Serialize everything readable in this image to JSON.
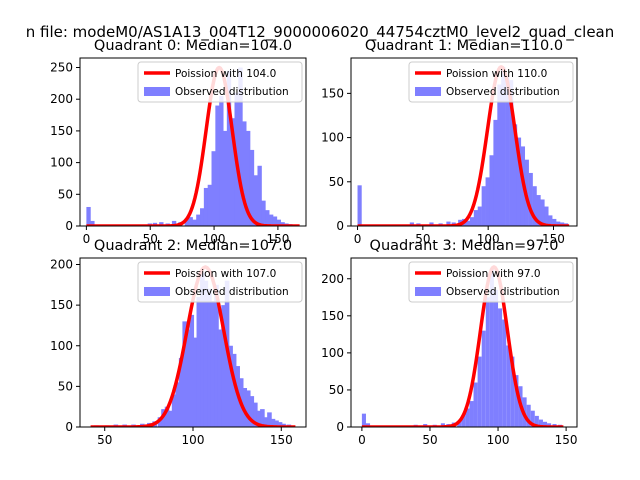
{
  "suptitle": "n file: modeM0/AS1A13_004T12_9000006020_44754cztM0_level2_quad_clean",
  "colors": {
    "poisson_line": "#ff0000",
    "histogram": "#7f7fff",
    "axis": "#000000",
    "legend_border": "#cccccc"
  },
  "chart_data": [
    {
      "type": "bar",
      "title": "Quadrant 0: Median=104.0",
      "xlim": [
        -5,
        172
      ],
      "ylim": [
        0,
        265
      ],
      "xticks": [
        0,
        50,
        100,
        150
      ],
      "yticks": [
        0,
        50,
        100,
        150,
        200,
        250
      ],
      "legend_position": "top-right",
      "series": [
        {
          "name": "Poission with 104.0",
          "kind": "line",
          "mu": 104.0,
          "scale": 250,
          "x_range": [
            0,
            167
          ]
        },
        {
          "name": "Observed distribution",
          "kind": "histogram",
          "bin_width": 3.4,
          "bins": [
            {
              "x": 0,
              "y": 30
            },
            {
              "x": 3,
              "y": 8
            },
            {
              "x": 48,
              "y": 4
            },
            {
              "x": 52,
              "y": 5
            },
            {
              "x": 57,
              "y": 6
            },
            {
              "x": 62,
              "y": 4
            },
            {
              "x": 67,
              "y": 8
            },
            {
              "x": 72,
              "y": 6
            },
            {
              "x": 77,
              "y": 12
            },
            {
              "x": 80,
              "y": 14
            },
            {
              "x": 83,
              "y": 10
            },
            {
              "x": 86,
              "y": 18
            },
            {
              "x": 89,
              "y": 28
            },
            {
              "x": 92,
              "y": 60
            },
            {
              "x": 95,
              "y": 65
            },
            {
              "x": 98,
              "y": 118
            },
            {
              "x": 101,
              "y": 190
            },
            {
              "x": 104,
              "y": 205
            },
            {
              "x": 107,
              "y": 150
            },
            {
              "x": 110,
              "y": 245
            },
            {
              "x": 113,
              "y": 170
            },
            {
              "x": 116,
              "y": 210
            },
            {
              "x": 119,
              "y": 250
            },
            {
              "x": 122,
              "y": 165
            },
            {
              "x": 125,
              "y": 150
            },
            {
              "x": 128,
              "y": 120
            },
            {
              "x": 131,
              "y": 80
            },
            {
              "x": 134,
              "y": 95
            },
            {
              "x": 137,
              "y": 40
            },
            {
              "x": 140,
              "y": 25
            },
            {
              "x": 143,
              "y": 18
            },
            {
              "x": 146,
              "y": 15
            },
            {
              "x": 149,
              "y": 10
            },
            {
              "x": 152,
              "y": 6
            },
            {
              "x": 155,
              "y": 4
            },
            {
              "x": 158,
              "y": 3
            },
            {
              "x": 162,
              "y": 2
            }
          ]
        }
      ]
    },
    {
      "type": "bar",
      "title": "Quadrant 1: Median=110.0",
      "xlim": [
        -5,
        168
      ],
      "ylim": [
        0,
        190
      ],
      "xticks": [
        0,
        50,
        100,
        150
      ],
      "yticks": [
        0,
        50,
        100,
        150
      ],
      "legend_position": "top-right",
      "series": [
        {
          "name": "Poission with 110.0",
          "kind": "line",
          "mu": 110.0,
          "scale": 180,
          "x_range": [
            0,
            162
          ]
        },
        {
          "name": "Observed distribution",
          "kind": "histogram",
          "bin_width": 3.2,
          "bins": [
            {
              "x": 0,
              "y": 46
            },
            {
              "x": 40,
              "y": 4
            },
            {
              "x": 45,
              "y": 3
            },
            {
              "x": 55,
              "y": 4
            },
            {
              "x": 62,
              "y": 3
            },
            {
              "x": 68,
              "y": 5
            },
            {
              "x": 72,
              "y": 4
            },
            {
              "x": 77,
              "y": 7
            },
            {
              "x": 80,
              "y": 8
            },
            {
              "x": 83,
              "y": 6
            },
            {
              "x": 86,
              "y": 10
            },
            {
              "x": 89,
              "y": 18
            },
            {
              "x": 92,
              "y": 22
            },
            {
              "x": 95,
              "y": 45
            },
            {
              "x": 98,
              "y": 55
            },
            {
              "x": 101,
              "y": 80
            },
            {
              "x": 104,
              "y": 120
            },
            {
              "x": 107,
              "y": 160
            },
            {
              "x": 110,
              "y": 180
            },
            {
              "x": 113,
              "y": 170
            },
            {
              "x": 116,
              "y": 165
            },
            {
              "x": 119,
              "y": 115
            },
            {
              "x": 122,
              "y": 100
            },
            {
              "x": 125,
              "y": 90
            },
            {
              "x": 128,
              "y": 75
            },
            {
              "x": 131,
              "y": 60
            },
            {
              "x": 134,
              "y": 45
            },
            {
              "x": 137,
              "y": 35
            },
            {
              "x": 140,
              "y": 30
            },
            {
              "x": 143,
              "y": 22
            },
            {
              "x": 146,
              "y": 12
            },
            {
              "x": 149,
              "y": 8
            },
            {
              "x": 152,
              "y": 5
            },
            {
              "x": 155,
              "y": 4
            },
            {
              "x": 158,
              "y": 3
            }
          ]
        }
      ]
    },
    {
      "type": "bar",
      "title": "Quadrant 2: Median=107.0",
      "xlim": [
        36,
        164
      ],
      "ylim": [
        0,
        208
      ],
      "xticks": [
        50,
        100,
        150
      ],
      "yticks": [
        0,
        50,
        100,
        150,
        200
      ],
      "legend_position": "top-right",
      "series": [
        {
          "name": "Poission with 107.0",
          "kind": "line",
          "mu": 107.0,
          "scale": 197,
          "x_range": [
            42,
            158
          ]
        },
        {
          "name": "Observed distribution",
          "kind": "histogram",
          "bin_width": 2.6,
          "bins": [
            {
              "x": 44,
              "y": 2
            },
            {
              "x": 50,
              "y": 2
            },
            {
              "x": 55,
              "y": 3
            },
            {
              "x": 60,
              "y": 3
            },
            {
              "x": 65,
              "y": 3
            },
            {
              "x": 70,
              "y": 4
            },
            {
              "x": 74,
              "y": 5
            },
            {
              "x": 77,
              "y": 7
            },
            {
              "x": 80,
              "y": 12
            },
            {
              "x": 82,
              "y": 22
            },
            {
              "x": 84,
              "y": 25
            },
            {
              "x": 86,
              "y": 20
            },
            {
              "x": 88,
              "y": 40
            },
            {
              "x": 90,
              "y": 55
            },
            {
              "x": 92,
              "y": 85
            },
            {
              "x": 94,
              "y": 130
            },
            {
              "x": 96,
              "y": 120
            },
            {
              "x": 98,
              "y": 138
            },
            {
              "x": 100,
              "y": 110
            },
            {
              "x": 102,
              "y": 160
            },
            {
              "x": 104,
              "y": 190
            },
            {
              "x": 106,
              "y": 180
            },
            {
              "x": 108,
              "y": 170
            },
            {
              "x": 110,
              "y": 155
            },
            {
              "x": 112,
              "y": 175
            },
            {
              "x": 114,
              "y": 120
            },
            {
              "x": 116,
              "y": 150
            },
            {
              "x": 118,
              "y": 180
            },
            {
              "x": 120,
              "y": 100
            },
            {
              "x": 122,
              "y": 90
            },
            {
              "x": 124,
              "y": 75
            },
            {
              "x": 126,
              "y": 60
            },
            {
              "x": 128,
              "y": 48
            },
            {
              "x": 130,
              "y": 45
            },
            {
              "x": 132,
              "y": 38
            },
            {
              "x": 134,
              "y": 30
            },
            {
              "x": 136,
              "y": 20
            },
            {
              "x": 138,
              "y": 22
            },
            {
              "x": 140,
              "y": 12
            },
            {
              "x": 142,
              "y": 18
            },
            {
              "x": 144,
              "y": 10
            },
            {
              "x": 146,
              "y": 8
            },
            {
              "x": 148,
              "y": 6
            },
            {
              "x": 150,
              "y": 4
            },
            {
              "x": 153,
              "y": 3
            }
          ]
        }
      ]
    },
    {
      "type": "bar",
      "title": "Quadrant 3: Median=97.0",
      "xlim": [
        -8,
        158
      ],
      "ylim": [
        0,
        228
      ],
      "xticks": [
        0,
        50,
        100,
        150
      ],
      "yticks": [
        0,
        50,
        100,
        150,
        200
      ],
      "legend_position": "top-right",
      "series": [
        {
          "name": "Poission with 97.0",
          "kind": "line",
          "mu": 97.0,
          "scale": 216,
          "x_range": [
            0,
            148
          ]
        },
        {
          "name": "Observed distribution",
          "kind": "histogram",
          "bin_width": 3.0,
          "bins": [
            {
              "x": 0,
              "y": 18
            },
            {
              "x": 3,
              "y": 5
            },
            {
              "x": 38,
              "y": 3
            },
            {
              "x": 45,
              "y": 4
            },
            {
              "x": 52,
              "y": 3
            },
            {
              "x": 58,
              "y": 5
            },
            {
              "x": 62,
              "y": 4
            },
            {
              "x": 66,
              "y": 6
            },
            {
              "x": 70,
              "y": 8
            },
            {
              "x": 73,
              "y": 16
            },
            {
              "x": 76,
              "y": 25
            },
            {
              "x": 79,
              "y": 35
            },
            {
              "x": 82,
              "y": 60
            },
            {
              "x": 85,
              "y": 95
            },
            {
              "x": 88,
              "y": 130
            },
            {
              "x": 91,
              "y": 175
            },
            {
              "x": 94,
              "y": 215
            },
            {
              "x": 97,
              "y": 185
            },
            {
              "x": 100,
              "y": 160
            },
            {
              "x": 103,
              "y": 145
            },
            {
              "x": 106,
              "y": 110
            },
            {
              "x": 109,
              "y": 95
            },
            {
              "x": 112,
              "y": 70
            },
            {
              "x": 115,
              "y": 55
            },
            {
              "x": 118,
              "y": 40
            },
            {
              "x": 121,
              "y": 30
            },
            {
              "x": 124,
              "y": 22
            },
            {
              "x": 127,
              "y": 15
            },
            {
              "x": 130,
              "y": 10
            },
            {
              "x": 133,
              "y": 7
            },
            {
              "x": 136,
              "y": 5
            },
            {
              "x": 140,
              "y": 4
            },
            {
              "x": 144,
              "y": 3
            }
          ]
        }
      ]
    }
  ]
}
